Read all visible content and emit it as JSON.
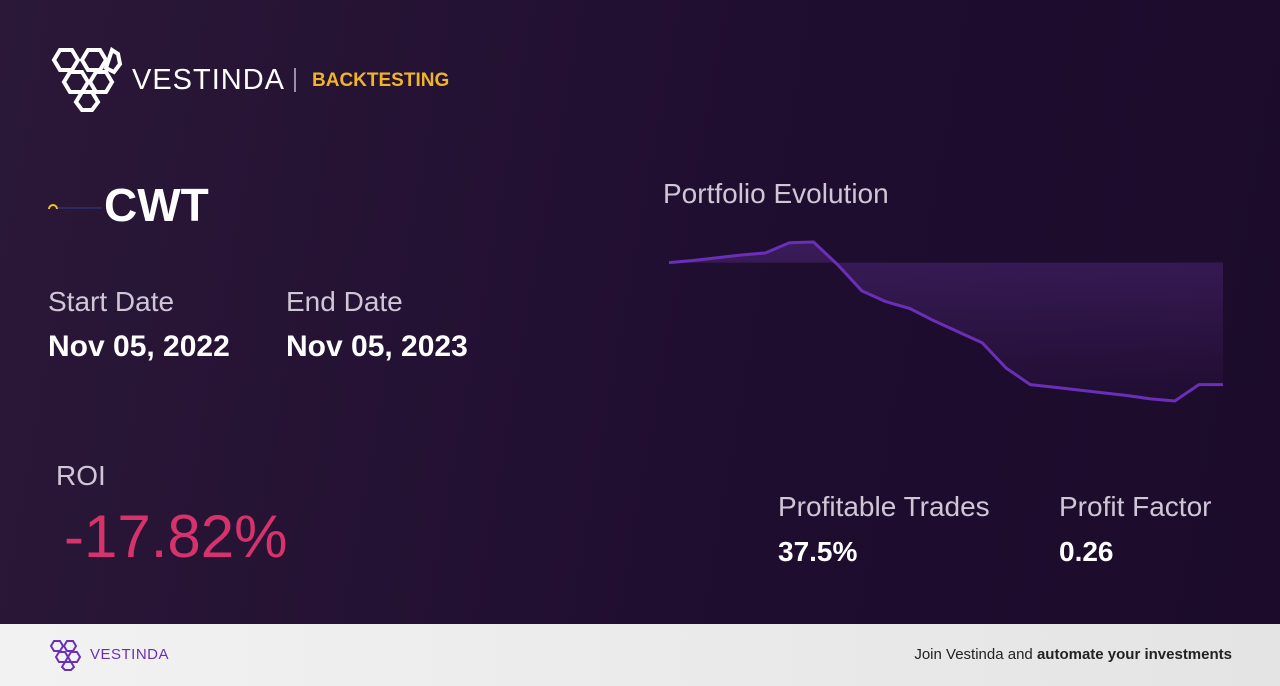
{
  "header": {
    "brand": "VESTINDA",
    "section": "BACKTESTING"
  },
  "ticker": "CWT",
  "dates": {
    "start_label": "Start Date",
    "start": "Nov 05, 2022",
    "end_label": "End Date",
    "end": "Nov 05, 2023"
  },
  "roi": {
    "label": "ROI",
    "value": "-17.82%"
  },
  "stats": [
    {
      "label": "Profitable Trades",
      "value": "37.5%"
    },
    {
      "label": "Profit Factor",
      "value": "0.26"
    }
  ],
  "chart_data": {
    "type": "line",
    "title": "Portfolio Evolution",
    "color": "#6a2fb8",
    "values": [
      100,
      100.3,
      100.7,
      101.1,
      101.4,
      102.9,
      103.0,
      99.7,
      95.9,
      94.3,
      93.3,
      91.5,
      89.9,
      88.3,
      84.6,
      82.2,
      81.8,
      81.4,
      81.0,
      80.6,
      80.1,
      79.8,
      82.2,
      82.2
    ]
  },
  "footer": {
    "brand": "VESTINDA",
    "cta_prefix": "Join Vestinda and",
    "cta_bold": "automate your investments"
  }
}
